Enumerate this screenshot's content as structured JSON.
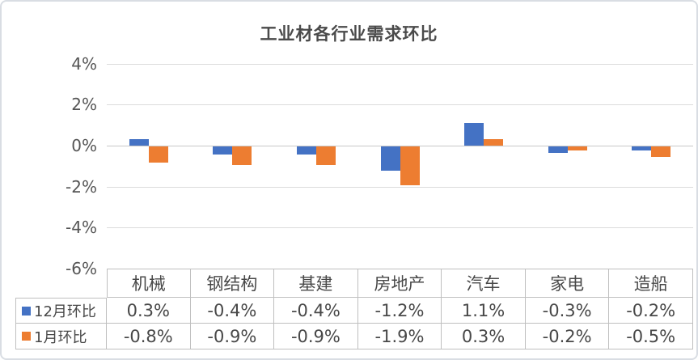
{
  "window": {
    "background": "#ffffff",
    "border_color": "#d9dde3"
  },
  "chart_data": {
    "type": "bar",
    "title": "工业材各行业需求环比",
    "categories": [
      "机械",
      "钢结构",
      "基建",
      "房地产",
      "汽车",
      "家电",
      "造船"
    ],
    "series": [
      {
        "name": "12月环比",
        "color": "#4472C4",
        "values": [
          0.3,
          -0.4,
          -0.4,
          -1.2,
          1.1,
          -0.3,
          -0.2
        ],
        "labels": [
          "0.3%",
          "-0.4%",
          "-0.4%",
          "-1.2%",
          "1.1%",
          "-0.3%",
          "-0.2%"
        ]
      },
      {
        "name": "1月环比",
        "color": "#ED7D31",
        "values": [
          -0.8,
          -0.9,
          -0.9,
          -1.9,
          0.3,
          -0.2,
          -0.5
        ],
        "labels": [
          "-0.8%",
          "-0.9%",
          "-0.9%",
          "-1.9%",
          "0.3%",
          "-0.2%",
          "-0.5%"
        ]
      }
    ],
    "unit": "%",
    "ylim": [
      -6,
      4
    ],
    "yticks": [
      4,
      2,
      0,
      -2,
      -4,
      -6
    ],
    "ytick_labels": [
      "4%",
      "2%",
      "0%",
      "-2%",
      "-4%",
      "-6%"
    ],
    "grid": true,
    "legend_position": "data-table-row-headers",
    "data_table_shown": true,
    "gridline_color": "#dcdcdc",
    "zero_line_color": "#c8c8c8",
    "table_border_color": "#bfbfbf",
    "text_color": "#484848",
    "title_color": "#4a4a4a"
  }
}
